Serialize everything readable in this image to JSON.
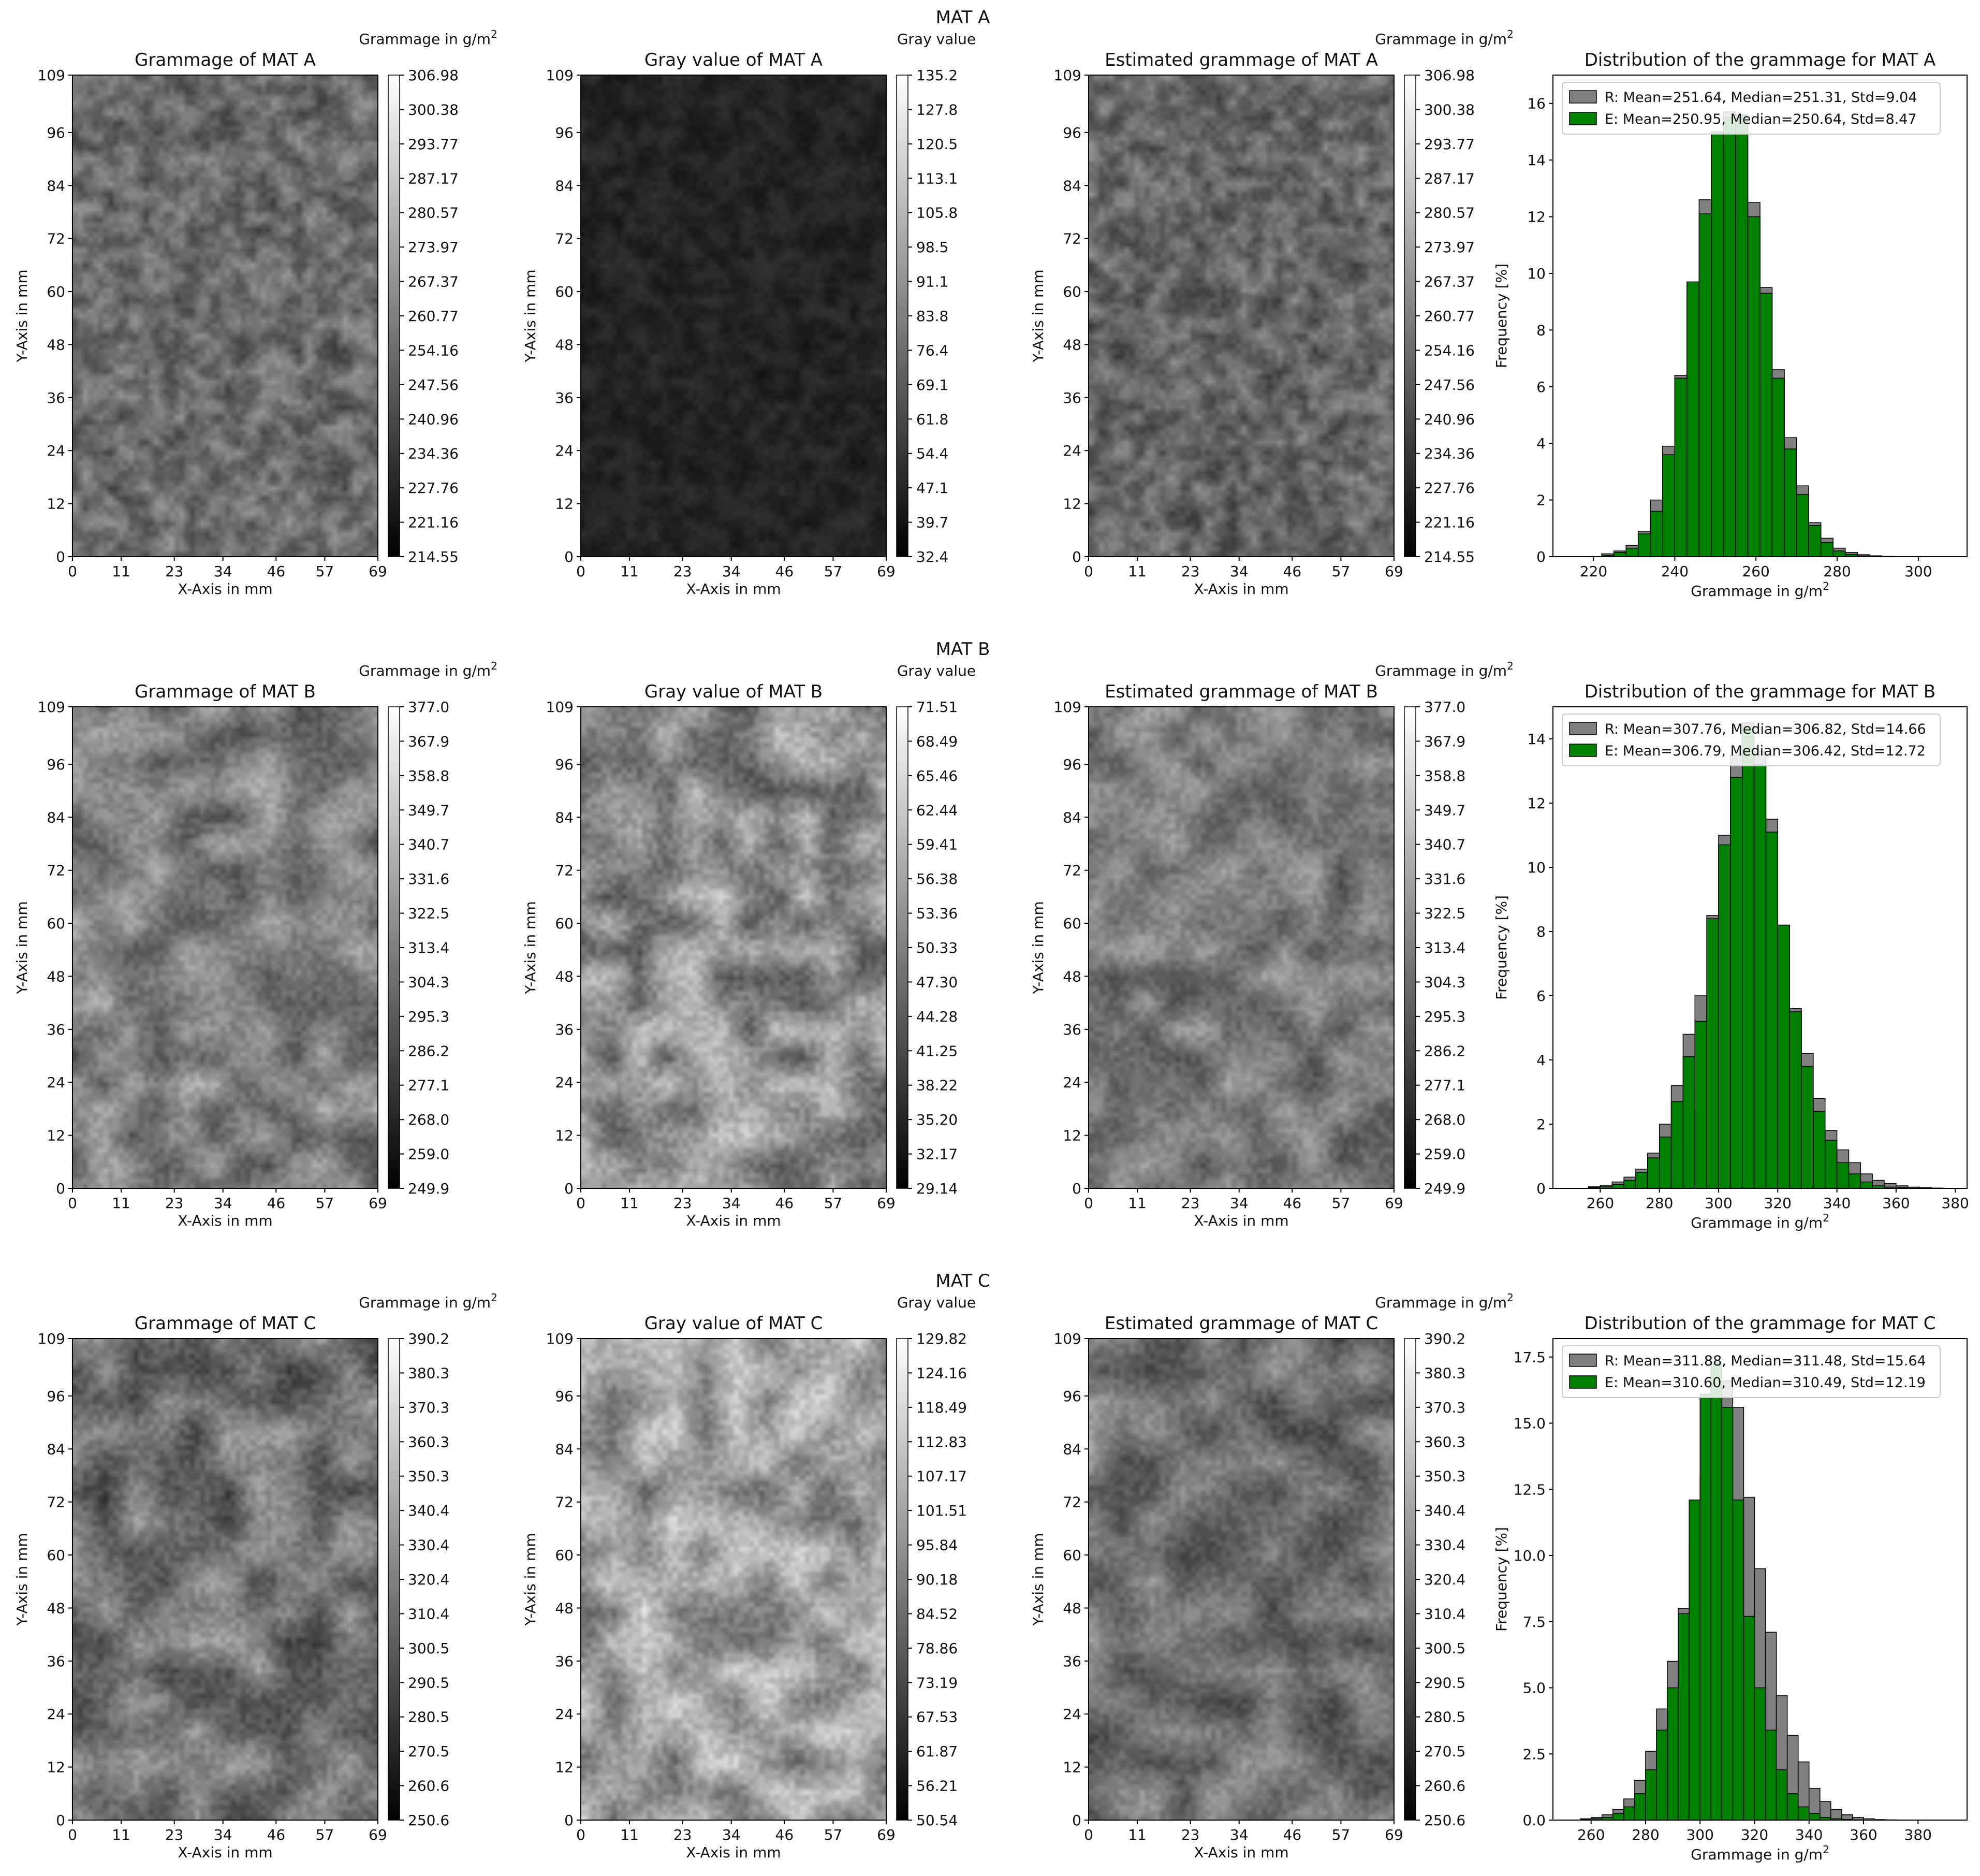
{
  "rows": [
    {
      "suptitle": "MAT A",
      "panels": [
        {
          "title": "Grammage of MAT A",
          "cbar_label": "Grammage in g/m²",
          "cbar_ticks": [
            "306.98",
            "300.38",
            "293.77",
            "287.17",
            "280.57",
            "273.97",
            "267.37",
            "260.77",
            "254.16",
            "247.56",
            "240.96",
            "234.36",
            "227.76",
            "221.16",
            "214.55"
          ],
          "brightness": 0.42,
          "contrast": 0.14,
          "blob": 7
        },
        {
          "title": "Gray value of MAT A",
          "cbar_label": "Gray value",
          "cbar_ticks": [
            "135.2",
            "127.8",
            "120.5",
            "113.1",
            "105.8",
            "98.5",
            "91.1",
            "83.8",
            "76.4",
            "69.1",
            "61.8",
            "54.4",
            "47.1",
            "39.7",
            "32.4"
          ],
          "brightness": 0.14,
          "contrast": 0.05,
          "blob": 7
        },
        {
          "title": "Estimated grammage of MAT A",
          "cbar_label": "Grammage in g/m²",
          "cbar_ticks": [
            "306.98",
            "300.38",
            "293.77",
            "287.17",
            "280.57",
            "273.97",
            "267.37",
            "260.77",
            "254.16",
            "247.56",
            "240.96",
            "234.36",
            "227.76",
            "221.16",
            "214.55"
          ],
          "brightness": 0.4,
          "contrast": 0.14,
          "blob": 7
        }
      ]
    },
    {
      "suptitle": "MAT B",
      "panels": [
        {
          "title": "Grammage of MAT B",
          "cbar_label": "Grammage in g/m²",
          "cbar_ticks": [
            "377.0",
            "367.9",
            "358.8",
            "349.7",
            "340.7",
            "331.6",
            "322.5",
            "313.4",
            "304.3",
            "295.3",
            "286.2",
            "277.1",
            "268.0",
            "259.0",
            "249.9"
          ],
          "brightness": 0.5,
          "contrast": 0.17,
          "blob": 16
        },
        {
          "title": "Gray value of MAT B",
          "cbar_label": "Gray value",
          "cbar_ticks": [
            "71.51",
            "68.49",
            "65.46",
            "62.44",
            "59.41",
            "56.38",
            "53.36",
            "50.33",
            "47.30",
            "44.28",
            "41.25",
            "38.22",
            "35.20",
            "32.17",
            "29.14"
          ],
          "brightness": 0.55,
          "contrast": 0.2,
          "blob": 16
        },
        {
          "title": "Estimated grammage of MAT B",
          "cbar_label": "Grammage in g/m²",
          "cbar_ticks": [
            "377.0",
            "367.9",
            "358.8",
            "349.7",
            "340.7",
            "331.6",
            "322.5",
            "313.4",
            "304.3",
            "295.3",
            "286.2",
            "277.1",
            "268.0",
            "259.0",
            "249.9"
          ],
          "brightness": 0.48,
          "contrast": 0.16,
          "blob": 16
        }
      ]
    },
    {
      "suptitle": "MAT C",
      "panels": [
        {
          "title": "Grammage of MAT C",
          "cbar_label": "Grammage in g/m²",
          "cbar_ticks": [
            "390.2",
            "380.3",
            "370.3",
            "360.3",
            "350.3",
            "340.4",
            "330.4",
            "320.4",
            "310.4",
            "300.5",
            "290.5",
            "280.5",
            "270.5",
            "260.6",
            "250.6"
          ],
          "brightness": 0.45,
          "contrast": 0.18,
          "blob": 18
        },
        {
          "title": "Gray value of MAT C",
          "cbar_label": "Gray value",
          "cbar_ticks": [
            "129.82",
            "124.16",
            "118.49",
            "112.83",
            "107.17",
            "101.51",
            "95.84",
            "90.18",
            "84.52",
            "78.86",
            "73.19",
            "67.53",
            "61.87",
            "56.21",
            "50.54"
          ],
          "brightness": 0.62,
          "contrast": 0.2,
          "blob": 18
        },
        {
          "title": "Estimated grammage of MAT C",
          "cbar_label": "Grammage in g/m²",
          "cbar_ticks": [
            "390.2",
            "380.3",
            "370.3",
            "360.3",
            "350.3",
            "340.4",
            "330.4",
            "320.4",
            "310.4",
            "300.5",
            "290.5",
            "280.5",
            "270.5",
            "260.6",
            "250.6"
          ],
          "brightness": 0.44,
          "contrast": 0.16,
          "blob": 18
        }
      ]
    }
  ],
  "map_axes": {
    "xlabel": "X-Axis in mm",
    "ylabel": "Y-Axis in mm",
    "xticks": [
      0,
      11,
      23,
      34,
      46,
      57,
      69
    ],
    "yticks": [
      0,
      12,
      24,
      36,
      48,
      60,
      72,
      84,
      96,
      109
    ],
    "xlim": [
      0,
      69
    ],
    "ylim": [
      0,
      109
    ]
  },
  "chart_data": [
    {
      "type": "bar",
      "title": "Distribution of the grammage for MAT A",
      "xlabel": "Grammage in g/m²",
      "ylabel": "Frequency [%]",
      "xlim": [
        210,
        312
      ],
      "ylim": [
        0,
        17
      ],
      "xticks": [
        220,
        240,
        260,
        280,
        300
      ],
      "yticks": [
        0,
        2,
        4,
        6,
        8,
        10,
        12,
        14,
        16
      ],
      "ytick_labels": [
        "0",
        "2",
        "4",
        "6",
        "8",
        "10",
        "12",
        "14",
        "16"
      ],
      "legend_position": "top-left",
      "series": [
        {
          "name": "R: Mean=251.64, Median=251.31, Std=9.04",
          "color": "#808080",
          "bin_start": 216,
          "bin_width": 3,
          "values": [
            0,
            0,
            0.1,
            0.2,
            0.4,
            0.9,
            2.0,
            3.9,
            6.4,
            9.4,
            12.6,
            14.9,
            15.7,
            14.8,
            12.5,
            9.5,
            6.6,
            4.2,
            2.5,
            1.2,
            0.65,
            0.3,
            0.15,
            0.07,
            0.03,
            0.01
          ]
        },
        {
          "name": "E: Mean=250.95, Median=250.64, Std=8.47",
          "color": "#008000",
          "bin_start": 216,
          "bin_width": 3,
          "values": [
            0,
            0,
            0.05,
            0.15,
            0.3,
            0.8,
            1.6,
            3.6,
            6.3,
            9.7,
            12.1,
            15.0,
            15.5,
            15.6,
            12.0,
            9.3,
            6.3,
            3.8,
            2.2,
            1.1,
            0.5,
            0.2,
            0.08,
            0.03,
            0.01,
            0
          ]
        }
      ]
    },
    {
      "type": "bar",
      "title": "Distribution of the grammage for MAT B",
      "xlabel": "Grammage in g/m²",
      "ylabel": "Frequency [%]",
      "xlim": [
        244,
        384
      ],
      "ylim": [
        0,
        15
      ],
      "xticks": [
        260,
        280,
        300,
        320,
        340,
        360,
        380
      ],
      "yticks": [
        0,
        2,
        4,
        6,
        8,
        10,
        12,
        14
      ],
      "ytick_labels": [
        "0",
        "2",
        "4",
        "6",
        "8",
        "10",
        "12",
        "14"
      ],
      "legend_position": "top-left",
      "series": [
        {
          "name": "R: Mean=307.76, Median=306.82, Std=14.66",
          "color": "#808080",
          "bin_start": 256,
          "bin_width": 4,
          "values": [
            0.05,
            0.1,
            0.2,
            0.35,
            0.6,
            1.1,
            2.0,
            3.2,
            4.8,
            6.0,
            8.5,
            11.0,
            13.5,
            14.5,
            13.6,
            11.5,
            8.2,
            5.6,
            4.2,
            2.8,
            1.8,
            1.2,
            0.8,
            0.45,
            0.25,
            0.15,
            0.08,
            0.04,
            0.02,
            0.01
          ]
        },
        {
          "name": "E: Mean=306.79, Median=306.42, Std=12.72",
          "color": "#008000",
          "bin_start": 256,
          "bin_width": 4,
          "values": [
            0.02,
            0.05,
            0.12,
            0.25,
            0.5,
            0.95,
            1.6,
            2.7,
            4.1,
            5.2,
            8.4,
            10.7,
            12.8,
            14.4,
            13.2,
            11.1,
            8.2,
            5.5,
            3.8,
            2.4,
            1.5,
            0.8,
            0.45,
            0.2,
            0.08,
            0.04,
            0.02,
            0.01,
            0,
            0
          ]
        }
      ]
    },
    {
      "type": "bar",
      "title": "Distribution of the grammage for MAT C",
      "xlabel": "Grammage in g/m²",
      "ylabel": "Frequency [%]",
      "xlim": [
        246,
        398
      ],
      "ylim": [
        0,
        18.2
      ],
      "xticks": [
        260,
        280,
        300,
        320,
        340,
        360,
        380
      ],
      "yticks": [
        0,
        2.5,
        5,
        7.5,
        10,
        12.5,
        15,
        17.5
      ],
      "ytick_labels": [
        "0.0",
        "2.5",
        "5.0",
        "7.5",
        "10.0",
        "12.5",
        "15.0",
        "17.5"
      ],
      "legend_position": "top-left",
      "series": [
        {
          "name": "R: Mean=311.88, Median=311.48, Std=15.64",
          "color": "#808080",
          "bin_start": 256,
          "bin_width": 4,
          "values": [
            0.05,
            0.1,
            0.2,
            0.4,
            0.8,
            1.5,
            2.6,
            4.2,
            6.0,
            8.0,
            10.5,
            13.0,
            15.8,
            16.6,
            15.6,
            12.2,
            9.5,
            7.1,
            4.7,
            3.2,
            2.2,
            1.2,
            0.7,
            0.4,
            0.2,
            0.1,
            0.05,
            0.02,
            0.01,
            0,
            0,
            0
          ]
        },
        {
          "name": "E: Mean=310.60, Median=310.49, Std=12.19",
          "color": "#008000",
          "bin_start": 256,
          "bin_width": 4,
          "values": [
            0.02,
            0.05,
            0.1,
            0.25,
            0.5,
            1.0,
            1.9,
            3.4,
            5.0,
            7.8,
            12.1,
            16.1,
            17.3,
            15.6,
            12.1,
            7.7,
            5.0,
            3.4,
            1.9,
            1.0,
            0.5,
            0.25,
            0.1,
            0.05,
            0.02,
            0.01,
            0,
            0,
            0,
            0,
            0,
            0
          ]
        }
      ]
    }
  ]
}
